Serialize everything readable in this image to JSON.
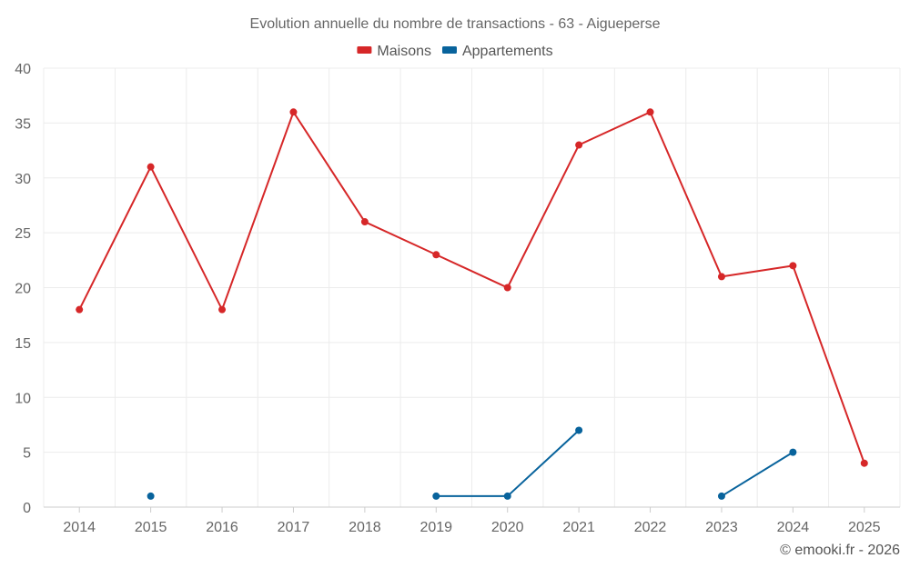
{
  "chart_data": {
    "type": "line",
    "title": "Evolution annuelle du nombre de transactions - 63 - Aigueperse",
    "categories": [
      "2014",
      "2015",
      "2016",
      "2017",
      "2018",
      "2019",
      "2020",
      "2021",
      "2022",
      "2023",
      "2024",
      "2025"
    ],
    "ylim": [
      0,
      40
    ],
    "yticks": [
      "0",
      "5",
      "10",
      "15",
      "20",
      "25",
      "30",
      "35",
      "40"
    ],
    "grid": true,
    "legend_position": "top-center",
    "series": [
      {
        "name": "Maisons",
        "color": "#d62728",
        "values": [
          18,
          31,
          18,
          36,
          26,
          23,
          20,
          33,
          36,
          21,
          22,
          4
        ]
      },
      {
        "name": "Appartements",
        "color": "#08639c",
        "values": [
          null,
          1,
          null,
          null,
          null,
          1,
          1,
          7,
          null,
          1,
          5,
          null
        ]
      }
    ],
    "credit": "© emooki.fr - 2026"
  }
}
